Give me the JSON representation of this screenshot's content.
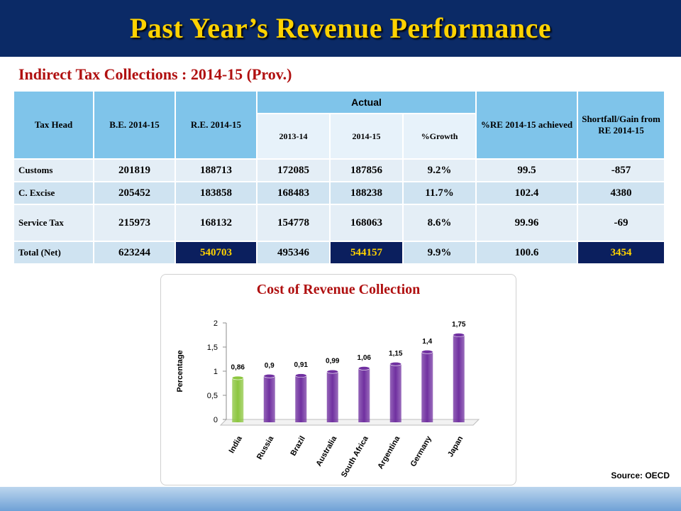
{
  "title": "Past Year’s Revenue Performance",
  "subtitle": "Indirect Tax Collections : 2014-15 (Prov.)",
  "table": {
    "headers": {
      "tax_head": "Tax Head",
      "be": "B.E. 2014-15",
      "re": "R.E. 2014-15",
      "actual": "Actual",
      "y1": "2013-14",
      "y2": "2014-15",
      "growth": "%Growth",
      "re_achieved": "%RE 2014-15 achieved",
      "shortfall": "Shortfall/Gain from RE 2014-15"
    },
    "rows": [
      {
        "head": "Customs",
        "be": "201819",
        "re": "188713",
        "y1": "172085",
        "y2": "187856",
        "growth": "9.2%",
        "achieved": "99.5",
        "shortfall": "-857"
      },
      {
        "head": "C. Excise",
        "be": "205452",
        "re": "183858",
        "y1": "168483",
        "y2": "188238",
        "growth": "11.7%",
        "achieved": "102.4",
        "shortfall": "4380"
      },
      {
        "head": "Service Tax",
        "be": "215973",
        "re": "168132",
        "y1": "154778",
        "y2": "168063",
        "growth": "8.6%",
        "achieved": "99.96",
        "shortfall": "-69"
      },
      {
        "head": "Total (Net)",
        "be": "623244",
        "re": "540703",
        "y1": "495346",
        "y2": "544157",
        "growth": "9.9%",
        "achieved": "100.6",
        "shortfall": "3454"
      }
    ]
  },
  "chart_data": {
    "type": "bar",
    "title": "Cost of Revenue Collection",
    "ylabel": "Percentage",
    "xlabel": "",
    "categories": [
      "India",
      "Russia",
      "Brazil",
      "Australia",
      "South Africa",
      "Argentina",
      "Germany",
      "Japan"
    ],
    "values": [
      0.86,
      0.9,
      0.91,
      0.99,
      1.06,
      1.15,
      1.4,
      1.75
    ],
    "value_labels": [
      "0,86",
      "0,9",
      "0,91",
      "0,99",
      "1,06",
      "1,15",
      "1,4",
      "1,75"
    ],
    "ylim": [
      0,
      2
    ],
    "yticks": [
      0,
      0.5,
      1,
      1.5,
      2
    ],
    "ytick_labels": [
      "0",
      "0,5",
      "1",
      "1,5",
      "2"
    ],
    "colors": {
      "highlight": "#8cc63f",
      "default": "#7030a0"
    },
    "highlight_index": 0,
    "grid": false
  },
  "source": "Source: OECD"
}
